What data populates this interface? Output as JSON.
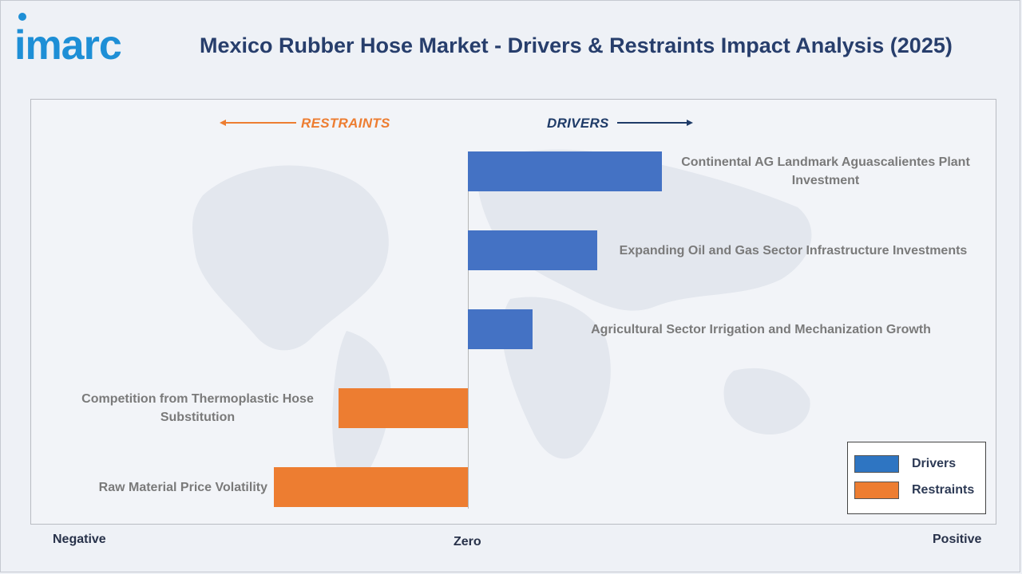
{
  "brand": {
    "logo_text": "imarc",
    "logo_color": "#1e8fd6"
  },
  "header": {
    "title": "Mexico Rubber Hose Market - Drivers & Restraints Impact Analysis (2025)",
    "title_color": "#273e6c"
  },
  "chart_data": {
    "type": "bar",
    "orientation": "horizontal",
    "categories": [
      "Continental AG Landmark Aguascalientes Plant Investment",
      "Expanding Oil and Gas Sector Infrastructure Investments",
      "Agricultural Sector Irrigation and Mechanization Growth",
      "Competition from Thermoplastic Hose Substitution",
      "Raw Material Price Volatility"
    ],
    "series": [
      {
        "name": "Drivers",
        "color": "#4472c4",
        "values": [
          3,
          2,
          1,
          0,
          0
        ]
      },
      {
        "name": "Restraints",
        "color": "#ed7d31",
        "values": [
          0,
          0,
          0,
          -2,
          -3
        ]
      }
    ],
    "xlim": [
      -3,
      3
    ],
    "axis_labels": {
      "left": "Negative",
      "center": "Zero",
      "right": "Positive"
    },
    "section_headers": {
      "restraints": "RESTRAINTS",
      "drivers": "DRIVERS",
      "restraints_color": "#ed7d31",
      "drivers_color": "#1f3b68"
    },
    "legend": {
      "position": "bottom-right",
      "entries": [
        "Drivers",
        "Restraints"
      ]
    },
    "legend_colors": [
      "#2e75c2",
      "#ed7d31"
    ],
    "grid": false
  }
}
